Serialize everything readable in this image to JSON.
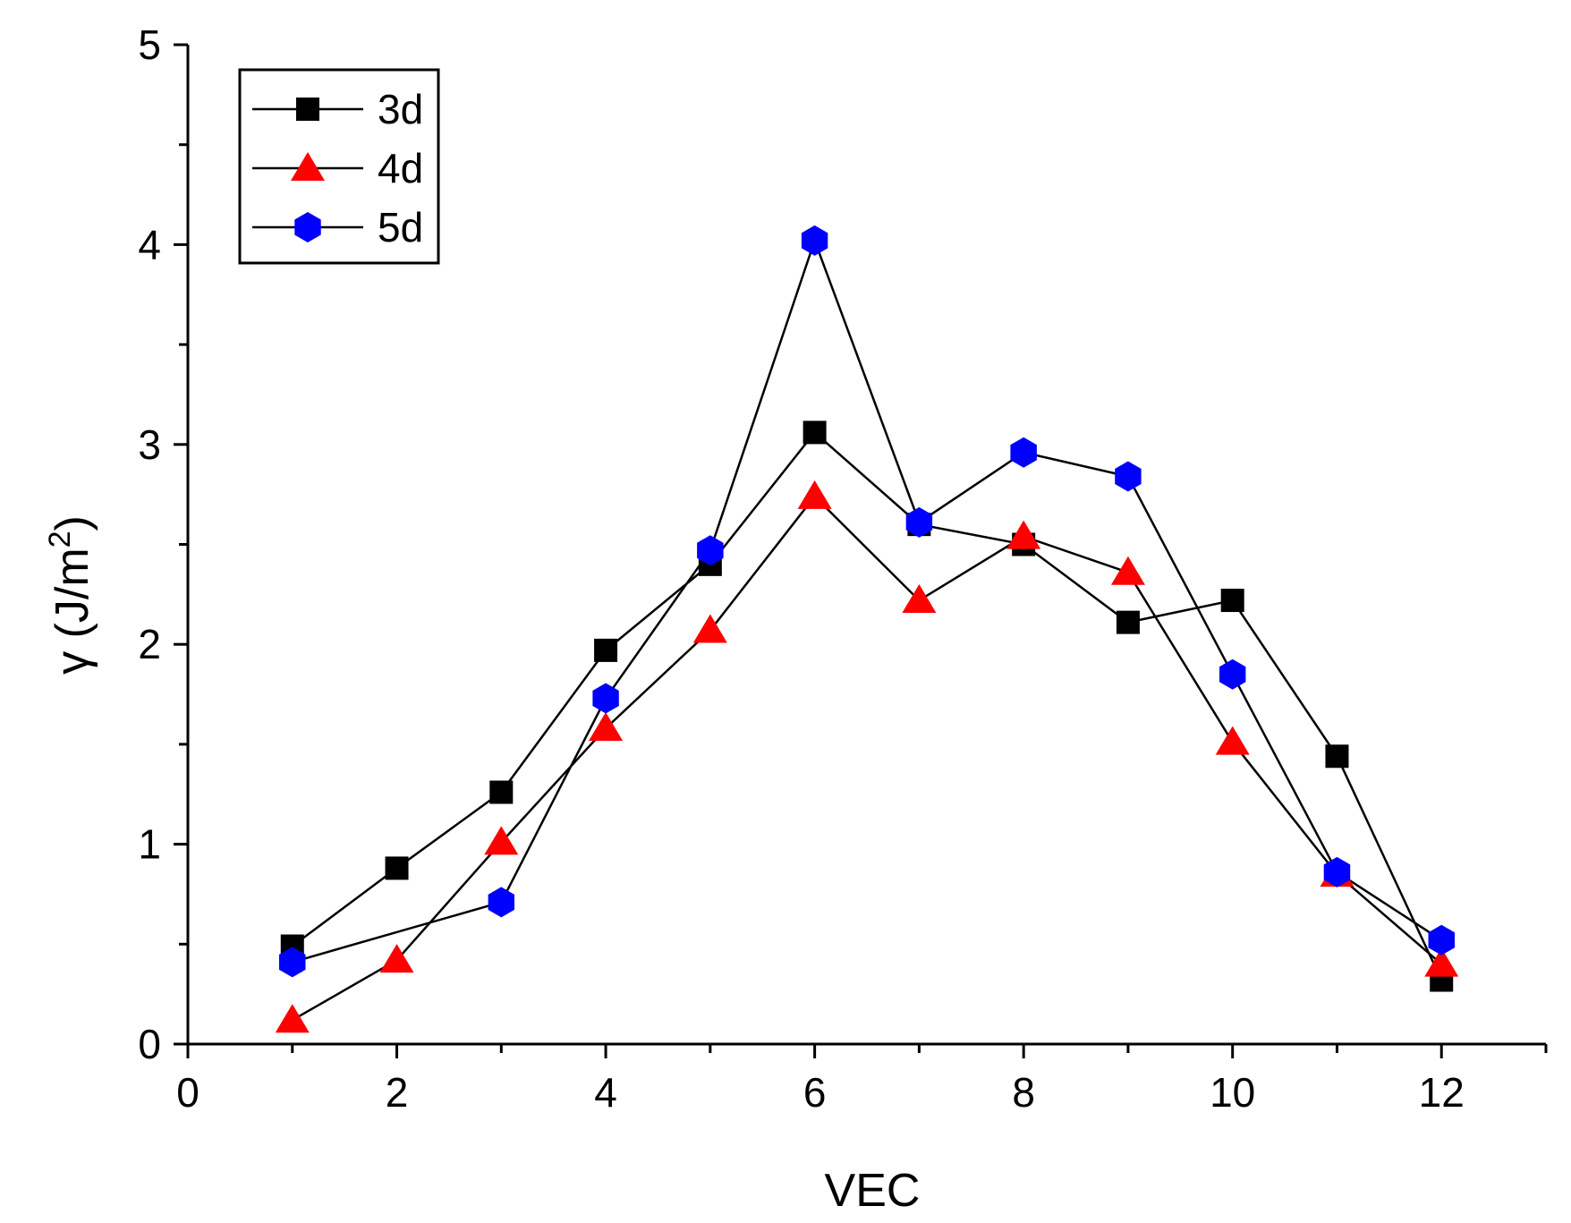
{
  "chart_data": {
    "type": "line",
    "title": "",
    "xlabel": "VEC",
    "ylabel": {
      "main": "γ (J/m",
      "sup": "2",
      "close": ")"
    },
    "xlim": [
      0,
      13
    ],
    "ylim": [
      0,
      5
    ],
    "xticks": [
      0,
      2,
      4,
      6,
      8,
      10,
      12
    ],
    "yticks": [
      0,
      1,
      2,
      3,
      4,
      5
    ],
    "x_tick_labels": [
      "0",
      "2",
      "4",
      "6",
      "8",
      "10",
      "12"
    ],
    "y_tick_labels": [
      "0",
      "1",
      "2",
      "3",
      "4",
      "5"
    ],
    "grid": false,
    "legend_position": "top-left",
    "series": [
      {
        "name": "3d",
        "marker": "square",
        "color": "#000000",
        "x": [
          1,
          2,
          3,
          4,
          5,
          6,
          7,
          8,
          9,
          10,
          11,
          12
        ],
        "y": [
          0.49,
          0.88,
          1.26,
          1.97,
          2.4,
          3.06,
          2.6,
          2.5,
          2.11,
          2.22,
          1.44,
          0.32
        ]
      },
      {
        "name": "4d",
        "marker": "triangle",
        "color": "#ff0000",
        "x": [
          1,
          2,
          3,
          4,
          5,
          6,
          7,
          8,
          9,
          10,
          11,
          12
        ],
        "y": [
          0.12,
          0.42,
          1.01,
          1.58,
          2.07,
          2.74,
          2.22,
          2.54,
          2.36,
          1.51,
          0.85,
          0.4
        ]
      },
      {
        "name": "5d",
        "marker": "hexagon",
        "color": "#0000ff",
        "x": [
          1,
          3,
          4,
          5,
          6,
          7,
          8,
          9,
          10,
          11,
          12
        ],
        "y": [
          0.41,
          0.71,
          1.73,
          2.47,
          4.02,
          2.61,
          2.96,
          2.84,
          1.85,
          0.86,
          0.52
        ]
      }
    ]
  }
}
